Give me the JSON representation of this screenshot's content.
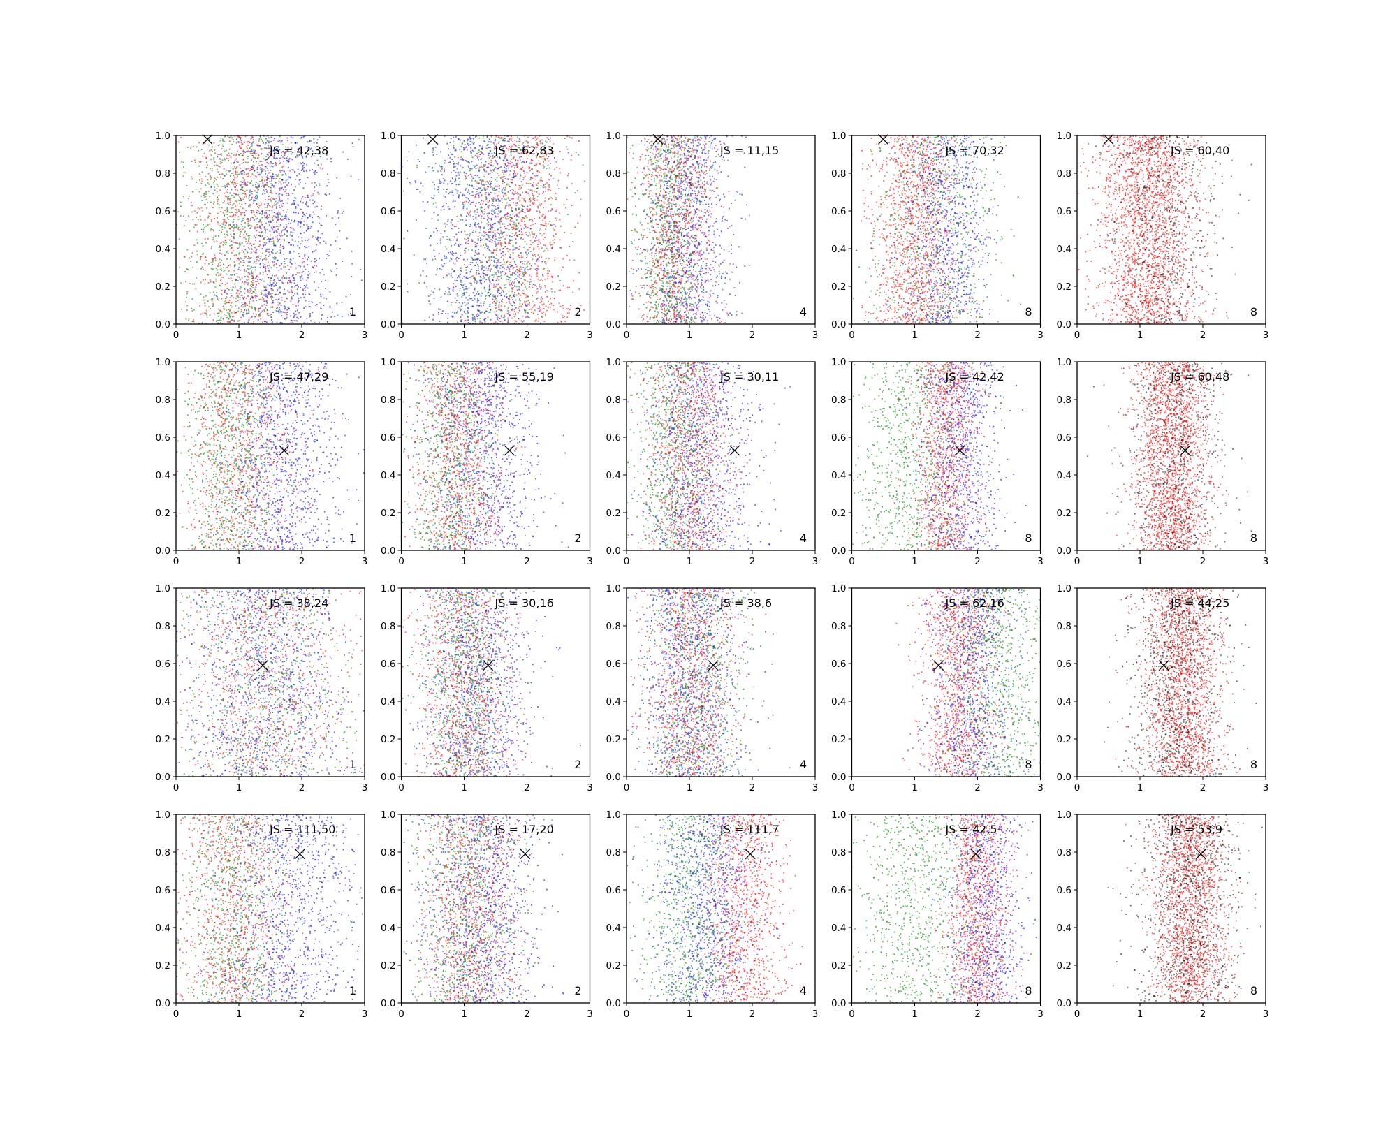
{
  "chart_data": {
    "type": "scatter",
    "layout": {
      "rows": 4,
      "cols": 5
    },
    "xlim": [
      0,
      3
    ],
    "ylim": [
      0,
      1
    ],
    "xticks": [
      "0",
      "1",
      "2",
      "3"
    ],
    "yticks": [
      "0.0",
      "0.2",
      "0.4",
      "0.6",
      "0.8",
      "1.0"
    ],
    "grid": false,
    "series_colors": {
      "blue": "#0000ff",
      "green": "#008000",
      "red": "#ff0000",
      "black": "#000000"
    },
    "marker": {
      "symbol": "x",
      "color": "#000000"
    },
    "panels": [
      {
        "row": 0,
        "col": 0,
        "label": "JS = 42,38",
        "corner": "1",
        "marker": [
          0.5,
          0.98
        ],
        "dist": [
          {
            "s": "blue",
            "cx": 1.7,
            "sx": 0.45,
            "w": 0.38
          },
          {
            "s": "green",
            "cx": 1.0,
            "sx": 0.45,
            "w": 0.32
          },
          {
            "s": "red",
            "cx": 1.1,
            "sx": 0.45,
            "w": 0.3
          }
        ]
      },
      {
        "row": 0,
        "col": 1,
        "label": "JS = 62,83",
        "corner": "2",
        "marker": [
          0.5,
          0.98
        ],
        "dist": [
          {
            "s": "blue",
            "cx": 1.3,
            "sx": 0.5,
            "w": 0.4
          },
          {
            "s": "red",
            "cx": 1.9,
            "sx": 0.4,
            "w": 0.35
          },
          {
            "s": "green",
            "cx": 1.5,
            "sx": 0.5,
            "w": 0.25
          }
        ]
      },
      {
        "row": 0,
        "col": 2,
        "label": "JS = 11,15",
        "corner": "4",
        "marker": [
          0.5,
          0.98
        ],
        "dist": [
          {
            "s": "blue",
            "cx": 1.0,
            "sx": 0.35,
            "w": 0.35
          },
          {
            "s": "green",
            "cx": 0.7,
            "sx": 0.3,
            "w": 0.33
          },
          {
            "s": "red",
            "cx": 0.8,
            "sx": 0.3,
            "w": 0.32
          }
        ]
      },
      {
        "row": 0,
        "col": 3,
        "label": "JS = 70,32",
        "corner": "8",
        "marker": [
          0.5,
          0.98
        ],
        "dist": [
          {
            "s": "red",
            "cx": 1.0,
            "sx": 0.35,
            "w": 0.45
          },
          {
            "s": "blue",
            "cx": 1.5,
            "sx": 0.35,
            "w": 0.3
          },
          {
            "s": "green",
            "cx": 1.3,
            "sx": 0.5,
            "w": 0.25
          }
        ]
      },
      {
        "row": 0,
        "col": 4,
        "label": "JS = 60,40",
        "corner": "8",
        "marker": [
          0.5,
          0.98
        ],
        "dist": [
          {
            "s": "red",
            "cx": 1.1,
            "sx": 0.4,
            "w": 0.75
          },
          {
            "s": "black",
            "cx": 1.4,
            "sx": 0.45,
            "w": 0.25
          }
        ]
      },
      {
        "row": 1,
        "col": 0,
        "label": "JS = 47,29",
        "corner": "1",
        "marker": [
          1.72,
          0.53
        ],
        "dist": [
          {
            "s": "blue",
            "cx": 1.7,
            "sx": 0.45,
            "w": 0.38
          },
          {
            "s": "green",
            "cx": 0.9,
            "sx": 0.4,
            "w": 0.32
          },
          {
            "s": "red",
            "cx": 1.0,
            "sx": 0.45,
            "w": 0.3
          }
        ]
      },
      {
        "row": 1,
        "col": 1,
        "label": "JS = 55,19",
        "corner": "2",
        "marker": [
          1.72,
          0.53
        ],
        "dist": [
          {
            "s": "blue",
            "cx": 1.3,
            "sx": 0.45,
            "w": 0.38
          },
          {
            "s": "green",
            "cx": 0.8,
            "sx": 0.35,
            "w": 0.3
          },
          {
            "s": "red",
            "cx": 0.9,
            "sx": 0.35,
            "w": 0.32
          }
        ]
      },
      {
        "row": 1,
        "col": 2,
        "label": "JS = 30,11",
        "corner": "4",
        "marker": [
          1.72,
          0.53
        ],
        "dist": [
          {
            "s": "blue",
            "cx": 1.2,
            "sx": 0.45,
            "w": 0.38
          },
          {
            "s": "green",
            "cx": 0.8,
            "sx": 0.35,
            "w": 0.3
          },
          {
            "s": "red",
            "cx": 1.0,
            "sx": 0.35,
            "w": 0.32
          }
        ]
      },
      {
        "row": 1,
        "col": 3,
        "label": "JS = 42,42",
        "corner": "8",
        "marker": [
          1.72,
          0.53
        ],
        "dist": [
          {
            "s": "red",
            "cx": 1.5,
            "sx": 0.25,
            "w": 0.4
          },
          {
            "s": "blue",
            "cx": 1.75,
            "sx": 0.3,
            "w": 0.3
          },
          {
            "s": "green",
            "cx": 0.9,
            "sx": 0.45,
            "w": 0.3
          }
        ]
      },
      {
        "row": 1,
        "col": 4,
        "label": "JS = 60,48",
        "corner": "8",
        "marker": [
          1.72,
          0.53
        ],
        "dist": [
          {
            "s": "red",
            "cx": 1.5,
            "sx": 0.3,
            "w": 0.7
          },
          {
            "s": "black",
            "cx": 1.6,
            "sx": 0.4,
            "w": 0.3
          }
        ]
      },
      {
        "row": 2,
        "col": 0,
        "label": "JS = 38,24",
        "corner": "1",
        "marker": [
          1.38,
          0.59
        ],
        "dist": [
          {
            "s": "blue",
            "cx": 1.4,
            "sx": 0.6,
            "w": 0.4
          },
          {
            "s": "green",
            "cx": 1.4,
            "sx": 0.7,
            "w": 0.3
          },
          {
            "s": "red",
            "cx": 1.5,
            "sx": 0.7,
            "w": 0.3
          }
        ]
      },
      {
        "row": 2,
        "col": 1,
        "label": "JS = 30,16",
        "corner": "2",
        "marker": [
          1.38,
          0.59
        ],
        "dist": [
          {
            "s": "blue",
            "cx": 1.2,
            "sx": 0.45,
            "w": 0.38
          },
          {
            "s": "green",
            "cx": 1.0,
            "sx": 0.35,
            "w": 0.3
          },
          {
            "s": "red",
            "cx": 1.0,
            "sx": 0.4,
            "w": 0.32
          }
        ]
      },
      {
        "row": 2,
        "col": 2,
        "label": "JS = 38,6",
        "corner": "4",
        "marker": [
          1.38,
          0.59
        ],
        "dist": [
          {
            "s": "blue",
            "cx": 1.0,
            "sx": 0.4,
            "w": 0.38
          },
          {
            "s": "green",
            "cx": 1.1,
            "sx": 0.4,
            "w": 0.3
          },
          {
            "s": "red",
            "cx": 1.0,
            "sx": 0.35,
            "w": 0.32
          }
        ]
      },
      {
        "row": 2,
        "col": 3,
        "label": "JS = 62,16",
        "corner": "8",
        "marker": [
          1.38,
          0.59
        ],
        "dist": [
          {
            "s": "red",
            "cx": 1.7,
            "sx": 0.3,
            "w": 0.4
          },
          {
            "s": "blue",
            "cx": 1.9,
            "sx": 0.35,
            "w": 0.3
          },
          {
            "s": "green",
            "cx": 2.3,
            "sx": 0.4,
            "w": 0.3
          }
        ]
      },
      {
        "row": 2,
        "col": 4,
        "label": "JS = 44,25",
        "corner": "8",
        "marker": [
          1.38,
          0.59
        ],
        "dist": [
          {
            "s": "red",
            "cx": 1.7,
            "sx": 0.3,
            "w": 0.6
          },
          {
            "s": "black",
            "cx": 1.6,
            "sx": 0.4,
            "w": 0.4
          }
        ]
      },
      {
        "row": 3,
        "col": 0,
        "label": "JS = 111,50",
        "corner": "1",
        "marker": [
          1.97,
          0.79
        ],
        "dist": [
          {
            "s": "blue",
            "cx": 1.8,
            "sx": 0.55,
            "w": 0.38
          },
          {
            "s": "green",
            "cx": 0.9,
            "sx": 0.45,
            "w": 0.32
          },
          {
            "s": "red",
            "cx": 0.9,
            "sx": 0.45,
            "w": 0.3
          }
        ]
      },
      {
        "row": 3,
        "col": 1,
        "label": "JS = 17,20",
        "corner": "2",
        "marker": [
          1.97,
          0.79
        ],
        "dist": [
          {
            "s": "blue",
            "cx": 1.3,
            "sx": 0.45,
            "w": 0.38
          },
          {
            "s": "green",
            "cx": 1.0,
            "sx": 0.4,
            "w": 0.3
          },
          {
            "s": "red",
            "cx": 1.1,
            "sx": 0.4,
            "w": 0.32
          }
        ]
      },
      {
        "row": 3,
        "col": 2,
        "label": "JS = 111,7",
        "corner": "4",
        "marker": [
          1.97,
          0.79
        ],
        "dist": [
          {
            "s": "blue",
            "cx": 1.3,
            "sx": 0.4,
            "w": 0.35
          },
          {
            "s": "green",
            "cx": 1.0,
            "sx": 0.4,
            "w": 0.3
          },
          {
            "s": "red",
            "cx": 1.9,
            "sx": 0.3,
            "w": 0.35
          }
        ]
      },
      {
        "row": 3,
        "col": 3,
        "label": "JS = 42,5",
        "corner": "8",
        "marker": [
          1.97,
          0.79
        ],
        "dist": [
          {
            "s": "red",
            "cx": 2.0,
            "sx": 0.25,
            "w": 0.4
          },
          {
            "s": "blue",
            "cx": 2.15,
            "sx": 0.3,
            "w": 0.3
          },
          {
            "s": "green",
            "cx": 1.0,
            "sx": 0.45,
            "w": 0.3
          }
        ]
      },
      {
        "row": 3,
        "col": 4,
        "label": "JS = 53,9",
        "corner": "8",
        "marker": [
          1.97,
          0.79
        ],
        "dist": [
          {
            "s": "red",
            "cx": 1.8,
            "sx": 0.28,
            "w": 0.6
          },
          {
            "s": "black",
            "cx": 1.8,
            "sx": 0.4,
            "w": 0.4
          }
        ]
      }
    ]
  }
}
